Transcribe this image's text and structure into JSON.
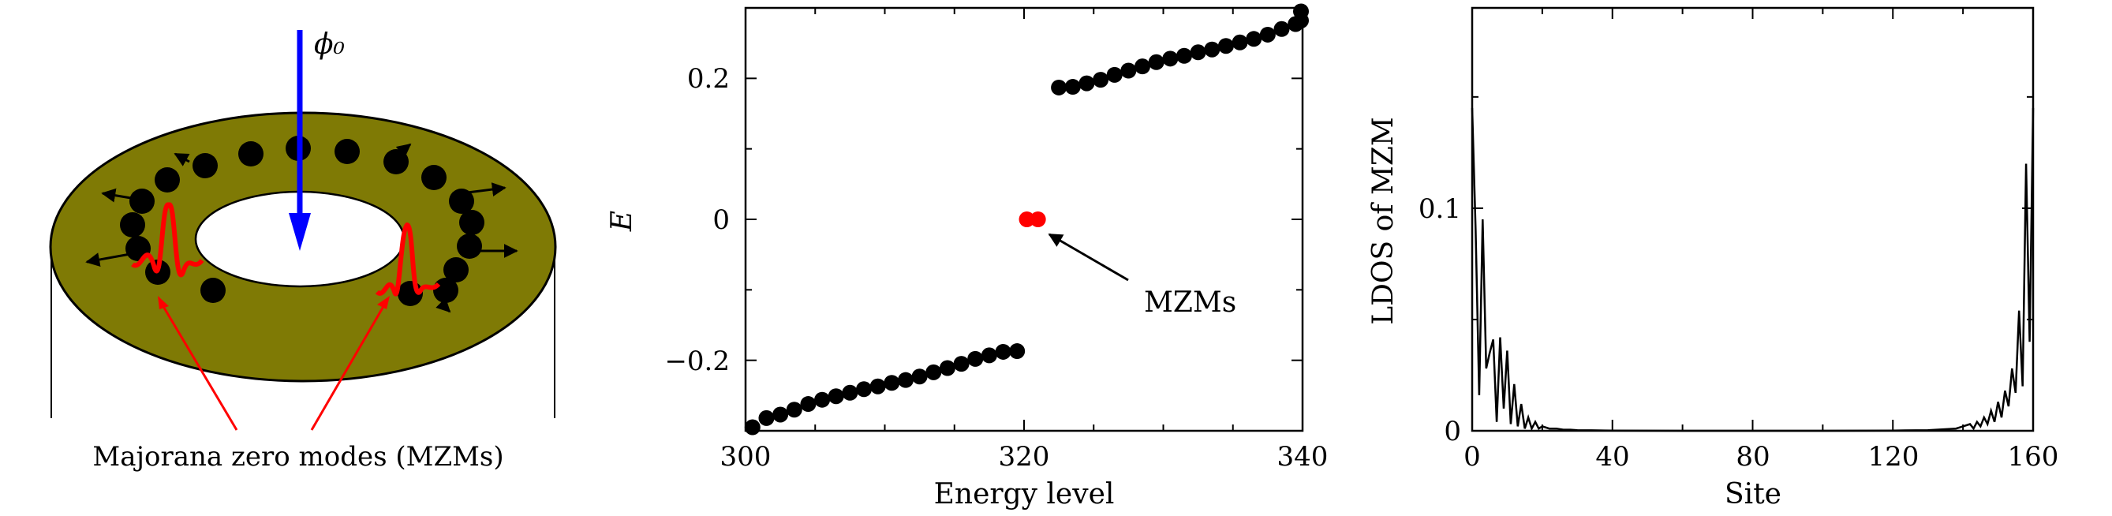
{
  "panel_a": {
    "flux_label": "ϕ₀",
    "caption": "Majorana zero modes (MZMs)",
    "colors": {
      "torus": "#7f7a05",
      "flux": "#0000ff",
      "mode": "#ff0000",
      "dot": "#000000"
    }
  },
  "chart_data": [
    {
      "type": "scatter",
      "xlabel": "Energy level",
      "ylabel": "E",
      "xlim": [
        300,
        340
      ],
      "ylim": [
        -0.3,
        0.3
      ],
      "xticks": [
        "300",
        "320",
        "340"
      ],
      "yticks": [
        "−0.2",
        "0",
        "0.2"
      ],
      "annotation": "MZMs",
      "series": [
        {
          "color": "#000000",
          "points": [
            [
              300.5,
              -0.295
            ],
            [
              301.5,
              -0.282
            ],
            [
              302.5,
              -0.277
            ],
            [
              303.5,
              -0.27
            ],
            [
              304.5,
              -0.262
            ],
            [
              305.5,
              -0.256
            ],
            [
              306.5,
              -0.251
            ],
            [
              307.5,
              -0.246
            ],
            [
              308.5,
              -0.241
            ],
            [
              309.5,
              -0.237
            ],
            [
              310.5,
              -0.232
            ],
            [
              311.5,
              -0.228
            ],
            [
              312.5,
              -0.223
            ],
            [
              313.5,
              -0.217
            ],
            [
              314.5,
              -0.211
            ],
            [
              315.5,
              -0.205
            ],
            [
              316.5,
              -0.198
            ],
            [
              317.5,
              -0.193
            ],
            [
              318.5,
              -0.188
            ],
            [
              319.5,
              -0.187
            ],
            [
              322.5,
              0.187
            ],
            [
              323.5,
              0.188
            ],
            [
              324.5,
              0.193
            ],
            [
              325.5,
              0.198
            ],
            [
              326.5,
              0.205
            ],
            [
              327.5,
              0.211
            ],
            [
              328.5,
              0.217
            ],
            [
              329.5,
              0.223
            ],
            [
              330.5,
              0.228
            ],
            [
              331.5,
              0.232
            ],
            [
              332.5,
              0.237
            ],
            [
              333.5,
              0.241
            ],
            [
              334.5,
              0.246
            ],
            [
              335.5,
              0.251
            ],
            [
              336.5,
              0.256
            ],
            [
              337.5,
              0.262
            ],
            [
              338.5,
              0.27
            ],
            [
              339.5,
              0.277
            ],
            [
              340.5,
              0.282
            ],
            [
              341.0,
              0.295
            ]
          ]
        },
        {
          "color": "#ff0000",
          "points": [
            [
              320.2,
              0.0
            ],
            [
              321.0,
              0.0
            ]
          ]
        }
      ]
    },
    {
      "type": "line",
      "xlabel": "Site",
      "ylabel": "LDOS of MZM",
      "xlim": [
        0,
        160
      ],
      "ylim": [
        0,
        0.19
      ],
      "xticks": [
        "0",
        "40",
        "80",
        "120",
        "160"
      ],
      "yticks": [
        "0",
        "0.1"
      ],
      "series": [
        {
          "color": "#000000",
          "x": [
            0,
            1,
            2,
            3,
            4,
            5,
            6,
            7,
            8,
            9,
            10,
            11,
            12,
            13,
            14,
            15,
            16,
            17,
            18,
            19,
            20,
            22,
            24,
            26,
            28,
            30,
            34,
            40,
            60,
            80,
            100,
            120,
            130,
            136,
            138,
            140,
            142,
            143,
            144,
            145,
            146,
            147,
            148,
            149,
            150,
            151,
            152,
            153,
            154,
            155,
            156,
            157,
            158,
            159,
            160
          ],
          "y": [
            0.145,
            0.09,
            0.016,
            0.095,
            0.028,
            0.035,
            0.041,
            0.004,
            0.042,
            0.01,
            0.036,
            0.003,
            0.021,
            0.002,
            0.012,
            0.001,
            0.006,
            0.001,
            0.004,
            0.001,
            0.002,
            0.001,
            0.001,
            0.0005,
            0.0005,
            0.0003,
            0.0002,
            0.0001,
            0,
            0,
            0,
            0.0001,
            0.0003,
            0.0008,
            0.001,
            0.002,
            0.003,
            0.001,
            0.004,
            0.002,
            0.006,
            0.003,
            0.009,
            0.004,
            0.013,
            0.006,
            0.018,
            0.011,
            0.028,
            0.017,
            0.054,
            0.02,
            0.12,
            0.04,
            0.145
          ]
        }
      ]
    }
  ]
}
